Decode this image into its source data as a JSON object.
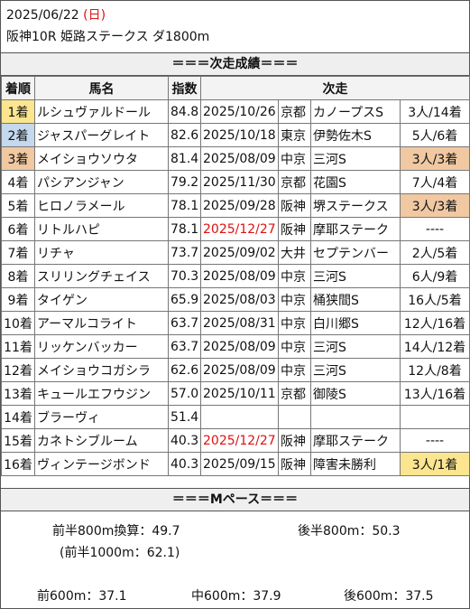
{
  "header": {
    "date": "2025/06/22",
    "day_open": "(",
    "day": "日",
    "day_close": ")",
    "race": "阪神10R 姫路ステークス ダ1800m"
  },
  "section_result_title": "＝＝＝次走成績＝＝＝",
  "table": {
    "headers": [
      "着順",
      "馬名",
      "指数",
      "次走"
    ],
    "rows": [
      {
        "rank": "1着",
        "name": "ルシュヴァルドール",
        "index": "84.8",
        "date": "2025/10/26",
        "venue": "京都",
        "race": "カノープスS",
        "result": "3人/14着",
        "rank_hl": "gold",
        "date_red": false,
        "res_hl": ""
      },
      {
        "rank": "2着",
        "name": "ジャスパーグレイト",
        "index": "82.6",
        "date": "2025/10/18",
        "venue": "東京",
        "race": "伊勢佐木S",
        "result": "5人/6着",
        "rank_hl": "blue",
        "date_red": false,
        "res_hl": ""
      },
      {
        "rank": "3着",
        "name": "メイショウソウタ",
        "index": "81.4",
        "date": "2025/08/09",
        "venue": "中京",
        "race": "三河S",
        "result": "3人/3着",
        "rank_hl": "orange",
        "date_red": false,
        "res_hl": "orange"
      },
      {
        "rank": "4着",
        "name": "パシアンジャン",
        "index": "79.2",
        "date": "2025/11/30",
        "venue": "京都",
        "race": "花園S",
        "result": "7人/4着",
        "rank_hl": "",
        "date_red": false,
        "res_hl": ""
      },
      {
        "rank": "5着",
        "name": "ヒロノラメール",
        "index": "78.1",
        "date": "2025/09/28",
        "venue": "阪神",
        "race": "堺ステークス",
        "result": "3人/3着",
        "rank_hl": "",
        "date_red": false,
        "res_hl": "orange"
      },
      {
        "rank": "6着",
        "name": "リトルハピ",
        "index": "78.1",
        "date": "2025/12/27",
        "venue": "阪神",
        "race": "摩耶ステーク",
        "result": "----",
        "rank_hl": "",
        "date_red": true,
        "res_hl": ""
      },
      {
        "rank": "7着",
        "name": "リチャ",
        "index": "73.7",
        "date": "2025/09/02",
        "venue": "大井",
        "race": "セプテンバー",
        "result": "2人/5着",
        "rank_hl": "",
        "date_red": false,
        "res_hl": ""
      },
      {
        "rank": "8着",
        "name": "スリリングチェイス",
        "index": "70.3",
        "date": "2025/08/09",
        "venue": "中京",
        "race": "三河S",
        "result": "6人/9着",
        "rank_hl": "",
        "date_red": false,
        "res_hl": ""
      },
      {
        "rank": "9着",
        "name": "タイゲン",
        "index": "65.9",
        "date": "2025/08/03",
        "venue": "中京",
        "race": "桶狭間S",
        "result": "16人/5着",
        "rank_hl": "",
        "date_red": false,
        "res_hl": ""
      },
      {
        "rank": "10着",
        "name": "アーマルコライト",
        "index": "63.7",
        "date": "2025/08/31",
        "venue": "中京",
        "race": "白川郷S",
        "result": "12人/16着",
        "rank_hl": "",
        "date_red": false,
        "res_hl": ""
      },
      {
        "rank": "11着",
        "name": "リッケンバッカー",
        "index": "63.7",
        "date": "2025/08/09",
        "venue": "中京",
        "race": "三河S",
        "result": "14人/12着",
        "rank_hl": "",
        "date_red": false,
        "res_hl": ""
      },
      {
        "rank": "12着",
        "name": "メイショウコガシラ",
        "index": "62.6",
        "date": "2025/08/09",
        "venue": "中京",
        "race": "三河S",
        "result": "12人/8着",
        "rank_hl": "",
        "date_red": false,
        "res_hl": ""
      },
      {
        "rank": "13着",
        "name": "キュールエフウジン",
        "index": "57.0",
        "date": "2025/10/11",
        "venue": "京都",
        "race": "御陵S",
        "result": "13人/16着",
        "rank_hl": "",
        "date_red": false,
        "res_hl": ""
      },
      {
        "rank": "14着",
        "name": "ブラーヴィ",
        "index": "51.4",
        "date": "",
        "venue": "",
        "race": "",
        "result": "",
        "rank_hl": "",
        "date_red": false,
        "res_hl": ""
      },
      {
        "rank": "15着",
        "name": "カネトシブルーム",
        "index": "40.3",
        "date": "2025/12/27",
        "venue": "阪神",
        "race": "摩耶ステーク",
        "result": "----",
        "rank_hl": "",
        "date_red": true,
        "res_hl": ""
      },
      {
        "rank": "16着",
        "name": "ヴィンテージボンド",
        "index": "40.3",
        "date": "2025/09/15",
        "venue": "阪神",
        "race": "障害未勝利",
        "result": "3人/1着",
        "rank_hl": "",
        "date_red": false,
        "res_hl": "gold"
      }
    ]
  },
  "section_pace_title": "＝＝＝Mペース＝＝＝",
  "pace": {
    "first800": "前半800m換算：49.7",
    "last800": "後半800m：50.3",
    "first1000": "(前半1000m：62.1)",
    "early600": "前600m：37.1",
    "mid600": "中600m：37.9",
    "late600": "後600m：37.5"
  },
  "colors": {
    "gold": "#fbe58f",
    "blue": "#c4d8ee",
    "orange": "#f0c8a2",
    "red": "#dd1111"
  }
}
